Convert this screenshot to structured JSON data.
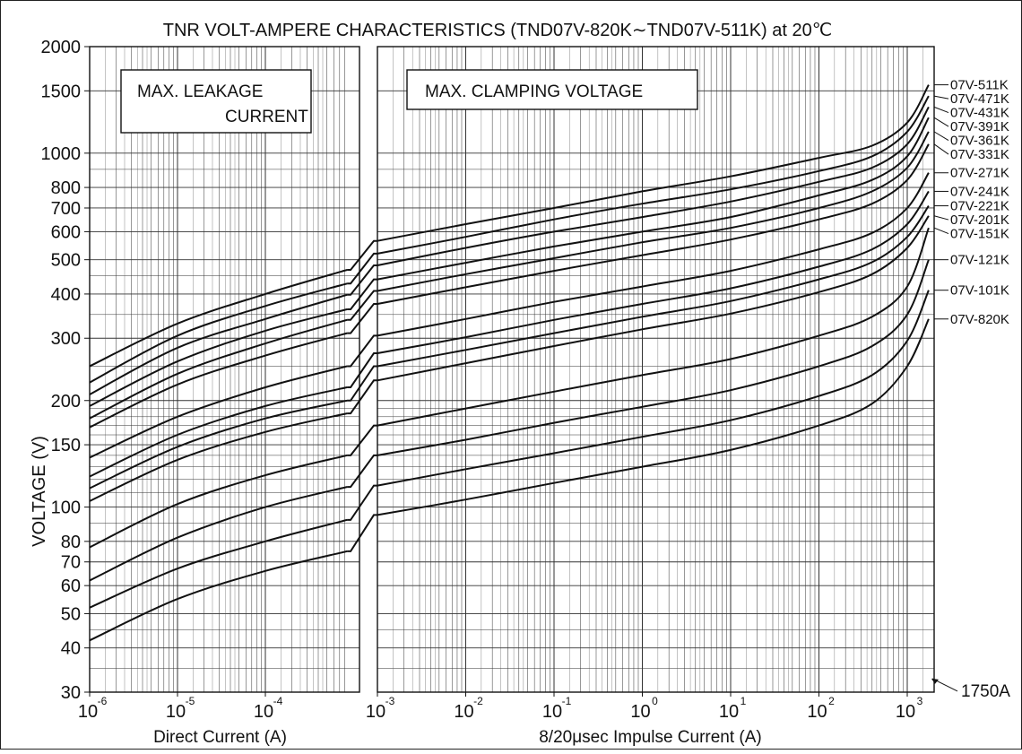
{
  "chart_data": {
    "type": "line",
    "title": "TNR VOLT-AMPERE CHARACTERISTICS (TND07V-820K∼TND07V-511K)  at 20℃",
    "ylabel": "VOLTAGE (V)",
    "y_scale": "log",
    "ylim": [
      30,
      2000
    ],
    "y_ticks": [
      {
        "value": 2000,
        "label": "2000"
      },
      {
        "value": 1500,
        "label": "1500"
      },
      {
        "value": 1000,
        "label": "1000"
      },
      {
        "value": 800,
        "label": "800"
      },
      {
        "value": 700,
        "label": "700"
      },
      {
        "value": 600,
        "label": "600"
      },
      {
        "value": 500,
        "label": "500"
      },
      {
        "value": 400,
        "label": "400"
      },
      {
        "value": 300,
        "label": "300"
      },
      {
        "value": 200,
        "label": "200"
      },
      {
        "value": 150,
        "label": "150"
      },
      {
        "value": 100,
        "label": "100"
      },
      {
        "value": 80,
        "label": "80"
      },
      {
        "value": 70,
        "label": "70"
      },
      {
        "value": 60,
        "label": "60"
      },
      {
        "value": 50,
        "label": "50"
      },
      {
        "value": 40,
        "label": "40"
      },
      {
        "value": 30,
        "label": "30"
      }
    ],
    "panels": [
      {
        "name": "leakage",
        "xlabel": "Direct Current (A)",
        "box_label_lines": [
          "MAX.    LEAKAGE",
          "CURRENT"
        ],
        "x_scale": "log",
        "xlim": [
          1e-06,
          0.00085
        ],
        "x_ticks": [
          {
            "value": 1e-06,
            "base": "10",
            "exp": "-6"
          },
          {
            "value": 1e-05,
            "base": "10",
            "exp": "-5"
          },
          {
            "value": 0.0001,
            "base": "10",
            "exp": "-4"
          }
        ]
      },
      {
        "name": "clamping",
        "xlabel": "8/20μsec  Impulse  Current (A)",
        "box_label_lines": [
          "MAX.  CLAMPING  VOLTAGE"
        ],
        "x_scale": "log",
        "xlim": [
          0.001,
          1750
        ],
        "x_ticks": [
          {
            "value": 0.001,
            "base": "10",
            "exp": "-3"
          },
          {
            "value": 0.01,
            "base": "10",
            "exp": "-2"
          },
          {
            "value": 0.1,
            "base": "10",
            "exp": "-1"
          },
          {
            "value": 1,
            "base": "10",
            "exp": "0"
          },
          {
            "value": 10,
            "base": "10",
            "exp": "1"
          },
          {
            "value": 100,
            "base": "10",
            "exp": "2"
          },
          {
            "value": 1000,
            "base": "10",
            "exp": "3"
          }
        ]
      }
    ],
    "annotations": [
      {
        "text": "1750A",
        "x": 1750,
        "y": 32,
        "panel": "clamping"
      }
    ],
    "series": [
      {
        "name": "07V-511K",
        "leakage": {
          "x": [
            1e-06,
            1e-05,
            0.0001,
            0.00085
          ],
          "y": [
            250,
            330,
            400,
            468
          ]
        },
        "clamping": {
          "x": [
            0.001,
            0.01,
            0.1,
            1,
            10,
            100,
            400,
            1000,
            1750
          ],
          "y": [
            565,
            630,
            700,
            780,
            860,
            970,
            1050,
            1220,
            1560
          ]
        }
      },
      {
        "name": "07V-471K",
        "leakage": {
          "x": [
            1e-06,
            1e-05,
            0.0001,
            0.00085
          ],
          "y": [
            225,
            305,
            370,
            428
          ]
        },
        "clamping": {
          "x": [
            0.001,
            0.01,
            0.1,
            1,
            10,
            100,
            400,
            1000,
            1750
          ],
          "y": [
            520,
            580,
            650,
            720,
            790,
            890,
            980,
            1150,
            1450
          ]
        }
      },
      {
        "name": "07V-431K",
        "leakage": {
          "x": [
            1e-06,
            1e-05,
            0.0001,
            0.00085
          ],
          "y": [
            208,
            282,
            340,
            398
          ]
        },
        "clamping": {
          "x": [
            0.001,
            0.01,
            0.1,
            1,
            10,
            100,
            400,
            1000,
            1750
          ],
          "y": [
            482,
            540,
            600,
            660,
            730,
            830,
            910,
            1060,
            1350
          ]
        }
      },
      {
        "name": "07V-391K",
        "leakage": {
          "x": [
            1e-06,
            1e-05,
            0.0001,
            0.00085
          ],
          "y": [
            193,
            258,
            315,
            362
          ]
        },
        "clamping": {
          "x": [
            0.001,
            0.01,
            0.1,
            1,
            10,
            100,
            400,
            1000,
            1750
          ],
          "y": [
            440,
            490,
            545,
            600,
            660,
            760,
            840,
            980,
            1260
          ]
        }
      },
      {
        "name": "07V-361K",
        "leakage": {
          "x": [
            1e-06,
            1e-05,
            0.0001,
            0.00085
          ],
          "y": [
            178,
            238,
            290,
            338
          ]
        },
        "clamping": {
          "x": [
            0.001,
            0.01,
            0.1,
            1,
            10,
            100,
            400,
            1000,
            1750
          ],
          "y": [
            408,
            455,
            505,
            560,
            615,
            700,
            780,
            910,
            1150
          ]
        }
      },
      {
        "name": "07V-331K",
        "leakage": {
          "x": [
            1e-06,
            1e-05,
            0.0001,
            0.00085
          ],
          "y": [
            168,
            222,
            268,
            310
          ]
        },
        "clamping": {
          "x": [
            0.001,
            0.01,
            0.1,
            1,
            10,
            100,
            400,
            1000,
            1750
          ],
          "y": [
            375,
            418,
            465,
            515,
            570,
            650,
            720,
            840,
            1060
          ]
        }
      },
      {
        "name": "07V-271K",
        "leakage": {
          "x": [
            1e-06,
            1e-05,
            0.0001,
            0.00085
          ],
          "y": [
            138,
            180,
            218,
            250
          ]
        },
        "clamping": {
          "x": [
            0.001,
            0.01,
            0.1,
            1,
            10,
            100,
            400,
            1000,
            1750
          ],
          "y": [
            305,
            340,
            380,
            420,
            465,
            535,
            595,
            700,
            880
          ]
        }
      },
      {
        "name": "07V-241K",
        "leakage": {
          "x": [
            1e-06,
            1e-05,
            0.0001,
            0.00085
          ],
          "y": [
            122,
            160,
            193,
            218
          ]
        },
        "clamping": {
          "x": [
            0.001,
            0.01,
            0.1,
            1,
            10,
            100,
            400,
            1000,
            1750
          ],
          "y": [
            272,
            302,
            338,
            375,
            415,
            478,
            535,
            630,
            780
          ]
        }
      },
      {
        "name": "07V-221K",
        "leakage": {
          "x": [
            1e-06,
            1e-05,
            0.0001,
            0.00085
          ],
          "y": [
            113,
            148,
            178,
            200
          ]
        },
        "clamping": {
          "x": [
            0.001,
            0.01,
            0.1,
            1,
            10,
            100,
            400,
            1000,
            1750
          ],
          "y": [
            250,
            278,
            310,
            345,
            382,
            440,
            492,
            580,
            710
          ]
        }
      },
      {
        "name": "07V-201K",
        "leakage": {
          "x": [
            1e-06,
            1e-05,
            0.0001,
            0.00085
          ],
          "y": [
            104,
            136,
            163,
            184
          ]
        },
        "clamping": {
          "x": [
            0.001,
            0.01,
            0.1,
            1,
            10,
            100,
            400,
            1000,
            1750
          ],
          "y": [
            228,
            255,
            285,
            318,
            352,
            405,
            455,
            540,
            665
          ]
        }
      },
      {
        "name": "07V-151K",
        "leakage": {
          "x": [
            1e-06,
            1e-05,
            0.0001,
            0.00085
          ],
          "y": [
            77,
            102,
            123,
            140
          ]
        },
        "clamping": {
          "x": [
            0.001,
            0.01,
            0.1,
            1,
            10,
            100,
            400,
            1000,
            1750
          ],
          "y": [
            170,
            190,
            212,
            236,
            262,
            305,
            345,
            420,
            615
          ]
        }
      },
      {
        "name": "07V-121K",
        "leakage": {
          "x": [
            1e-06,
            1e-05,
            0.0001,
            0.00085
          ],
          "y": [
            62,
            82,
            100,
            114
          ]
        },
        "clamping": {
          "x": [
            0.001,
            0.01,
            0.1,
            1,
            10,
            100,
            400,
            1000,
            1750
          ],
          "y": [
            140,
            155,
            173,
            192,
            214,
            250,
            285,
            350,
            500
          ]
        }
      },
      {
        "name": "07V-101K",
        "leakage": {
          "x": [
            1e-06,
            1e-05,
            0.0001,
            0.00085
          ],
          "y": [
            52,
            67,
            80,
            92
          ]
        },
        "clamping": {
          "x": [
            0.001,
            0.01,
            0.1,
            1,
            10,
            100,
            400,
            1000,
            1750
          ],
          "y": [
            115,
            128,
            142,
            158,
            176,
            206,
            236,
            295,
            410
          ]
        }
      },
      {
        "name": "07V-820K",
        "leakage": {
          "x": [
            1e-06,
            1e-05,
            0.0001,
            0.00085
          ],
          "y": [
            42,
            55,
            66,
            75
          ]
        },
        "clamping": {
          "x": [
            0.001,
            0.01,
            0.1,
            1,
            10,
            100,
            400,
            1000,
            1750
          ],
          "y": [
            95,
            105,
            117,
            130,
            145,
            170,
            196,
            250,
            340
          ]
        }
      }
    ],
    "grid": true,
    "legend_placement": "right (labels at curve ends)"
  }
}
